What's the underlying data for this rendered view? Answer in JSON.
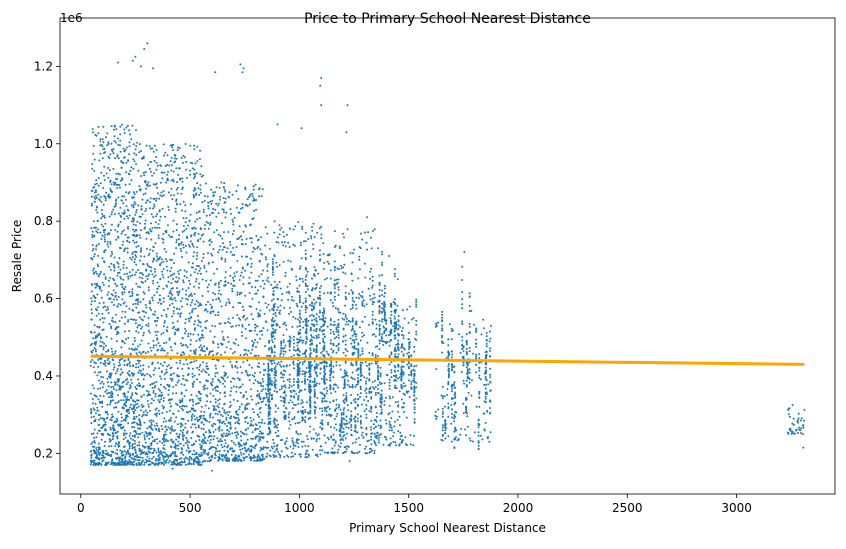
{
  "chart_data": {
    "type": "scatter",
    "title": "Price to Primary School Nearest Distance",
    "xlabel": "Primary School Nearest Distance",
    "ylabel": "Resale Price",
    "y_offset_label": "1e6",
    "xlim": [
      -95,
      3450
    ],
    "ylim": [
      95000,
      1325000
    ],
    "xticks": [
      0,
      500,
      1000,
      1500,
      2000,
      2500,
      3000
    ],
    "yticks": [
      200000,
      400000,
      600000,
      800000,
      1000000,
      1200000
    ],
    "xtick_labels": [
      "0",
      "500",
      "1000",
      "1500",
      "2000",
      "2500",
      "3000"
    ],
    "ytick_labels": [
      "0.2",
      "0.4",
      "0.6",
      "0.8",
      "1.0",
      "1.2"
    ],
    "grid": false,
    "colors": {
      "points": "#1f77b4",
      "regression": "#ffa500"
    },
    "regression": {
      "x": [
        45,
        3310
      ],
      "y": [
        451000,
        430000
      ]
    },
    "clusters": [
      {
        "x_range": [
          45,
          260
        ],
        "y_range": [
          170000,
          1050000
        ],
        "density": 0.9
      },
      {
        "x_range": [
          260,
          560
        ],
        "y_range": [
          170000,
          1000000
        ],
        "density": 1.0
      },
      {
        "x_range": [
          560,
          840
        ],
        "y_range": [
          180000,
          900000
        ],
        "density": 0.7
      },
      {
        "x_range": [
          840,
          1100
        ],
        "y_range": [
          190000,
          800000
        ],
        "density": 0.35
      },
      {
        "x_range": [
          1100,
          1350
        ],
        "y_range": [
          200000,
          780000
        ],
        "density": 0.25
      },
      {
        "x_range": [
          1350,
          1530
        ],
        "y_range": [
          220000,
          600000
        ],
        "density": 0.12
      },
      {
        "x_range": [
          1620,
          1880
        ],
        "y_range": [
          230000,
          580000
        ],
        "density": 0.08
      },
      {
        "x_range": [
          3230,
          3310
        ],
        "y_range": [
          250000,
          330000
        ],
        "density": 0.03
      }
    ],
    "outliers": [
      {
        "x": 305,
        "y": 1260000
      },
      {
        "x": 290,
        "y": 1245000
      },
      {
        "x": 250,
        "y": 1225000
      },
      {
        "x": 238,
        "y": 1215000
      },
      {
        "x": 170,
        "y": 1210000
      },
      {
        "x": 275,
        "y": 1200000
      },
      {
        "x": 330,
        "y": 1195000
      },
      {
        "x": 730,
        "y": 1205000
      },
      {
        "x": 745,
        "y": 1195000
      },
      {
        "x": 740,
        "y": 1185000
      },
      {
        "x": 615,
        "y": 1185000
      },
      {
        "x": 1100,
        "y": 1170000
      },
      {
        "x": 1095,
        "y": 1150000
      },
      {
        "x": 1100,
        "y": 1100000
      },
      {
        "x": 1220,
        "y": 1100000
      },
      {
        "x": 900,
        "y": 1050000
      },
      {
        "x": 1010,
        "y": 1040000
      },
      {
        "x": 1215,
        "y": 1030000
      },
      {
        "x": 1310,
        "y": 810000
      },
      {
        "x": 1360,
        "y": 730000
      },
      {
        "x": 1410,
        "y": 710000
      },
      {
        "x": 1450,
        "y": 650000
      },
      {
        "x": 1755,
        "y": 720000
      },
      {
        "x": 1230,
        "y": 180000
      },
      {
        "x": 600,
        "y": 155000
      },
      {
        "x": 420,
        "y": 160000
      },
      {
        "x": 3305,
        "y": 215000
      }
    ]
  }
}
